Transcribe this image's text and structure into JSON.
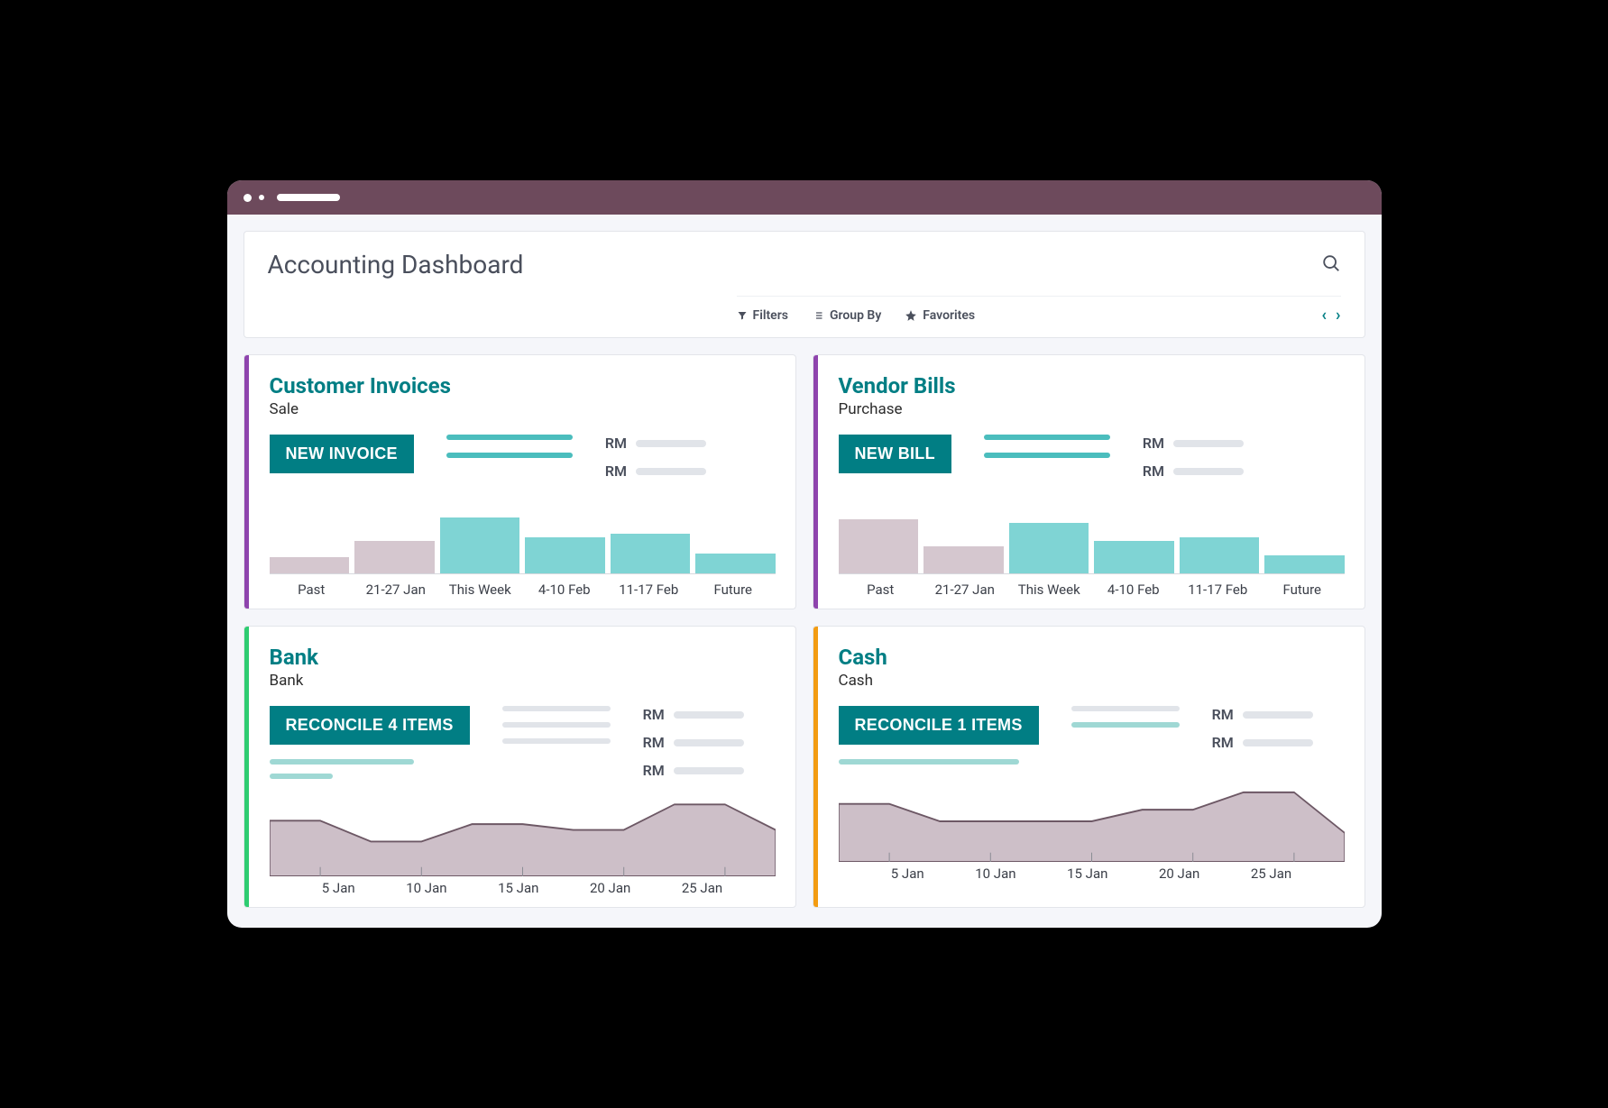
{
  "titlebar": {
    "bg": "#6d4a5c"
  },
  "header": {
    "title": "Accounting Dashboard",
    "tools": {
      "filters": "Filters",
      "groupby": "Group By",
      "favorites": "Favorites"
    }
  },
  "colors": {
    "accent_purple": "#8e44ad",
    "accent_green": "#2ecc71",
    "accent_orange": "#f39c12",
    "btn": "#017e84",
    "title": "#017e84",
    "bar_past": "#d5c7cf",
    "bar_main": "#7fd4d4",
    "legend_teal": "#4bbdbd",
    "legend_light": "#9fd8d4",
    "placeholder": "#e1e4e9",
    "area_fill": "#cdbfc8",
    "area_stroke": "#6d5865"
  },
  "cards": {
    "invoices": {
      "title": "Customer Invoices",
      "subtitle": "Sale",
      "button": "NEW INVOICE",
      "accent": "#8e44ad",
      "rm": [
        "RM",
        "RM"
      ],
      "chart": {
        "type": "bar",
        "labels": [
          "Past",
          "21-27 Jan",
          "This Week",
          "4-10 Feb",
          "11-17 Feb",
          "Future"
        ],
        "values": [
          18,
          36,
          62,
          40,
          44,
          22
        ],
        "colors": [
          "#d5c7cf",
          "#d5c7cf",
          "#7fd4d4",
          "#7fd4d4",
          "#7fd4d4",
          "#7fd4d4"
        ],
        "max": 68
      }
    },
    "bills": {
      "title": "Vendor Bills",
      "subtitle": "Purchase",
      "button": "NEW BILL",
      "accent": "#8e44ad",
      "rm": [
        "RM",
        "RM"
      ],
      "chart": {
        "type": "bar",
        "labels": [
          "Past",
          "21-27 Jan",
          "This Week",
          "4-10 Feb",
          "11-17 Feb",
          "Future"
        ],
        "values": [
          60,
          30,
          56,
          36,
          40,
          20
        ],
        "colors": [
          "#d5c7cf",
          "#d5c7cf",
          "#7fd4d4",
          "#7fd4d4",
          "#7fd4d4",
          "#7fd4d4"
        ],
        "max": 68
      }
    },
    "bank": {
      "title": "Bank",
      "subtitle": "Bank",
      "button": "RECONCILE 4 ITEMS",
      "accent": "#2ecc71",
      "rm": [
        "RM",
        "RM",
        "RM"
      ],
      "chart": {
        "type": "area",
        "labels": [
          "5 Jan",
          "10 Jan",
          "15 Jan",
          "20 Jan",
          "25 Jan"
        ],
        "points": [
          48,
          48,
          30,
          30,
          45,
          45,
          40,
          40,
          62,
          62,
          40
        ],
        "fill": "#cdbfc8",
        "stroke": "#6d5865"
      }
    },
    "cash": {
      "title": "Cash",
      "subtitle": "Cash",
      "button": "RECONCILE 1 ITEMS",
      "accent": "#f39c12",
      "rm": [
        "RM",
        "RM"
      ],
      "chart": {
        "type": "area",
        "labels": [
          "5 Jan",
          "10 Jan",
          "15 Jan",
          "20 Jan",
          "25 Jan"
        ],
        "points": [
          50,
          50,
          35,
          35,
          35,
          35,
          45,
          45,
          60,
          60,
          25
        ],
        "fill": "#cdbfc8",
        "stroke": "#6d5865"
      }
    }
  }
}
